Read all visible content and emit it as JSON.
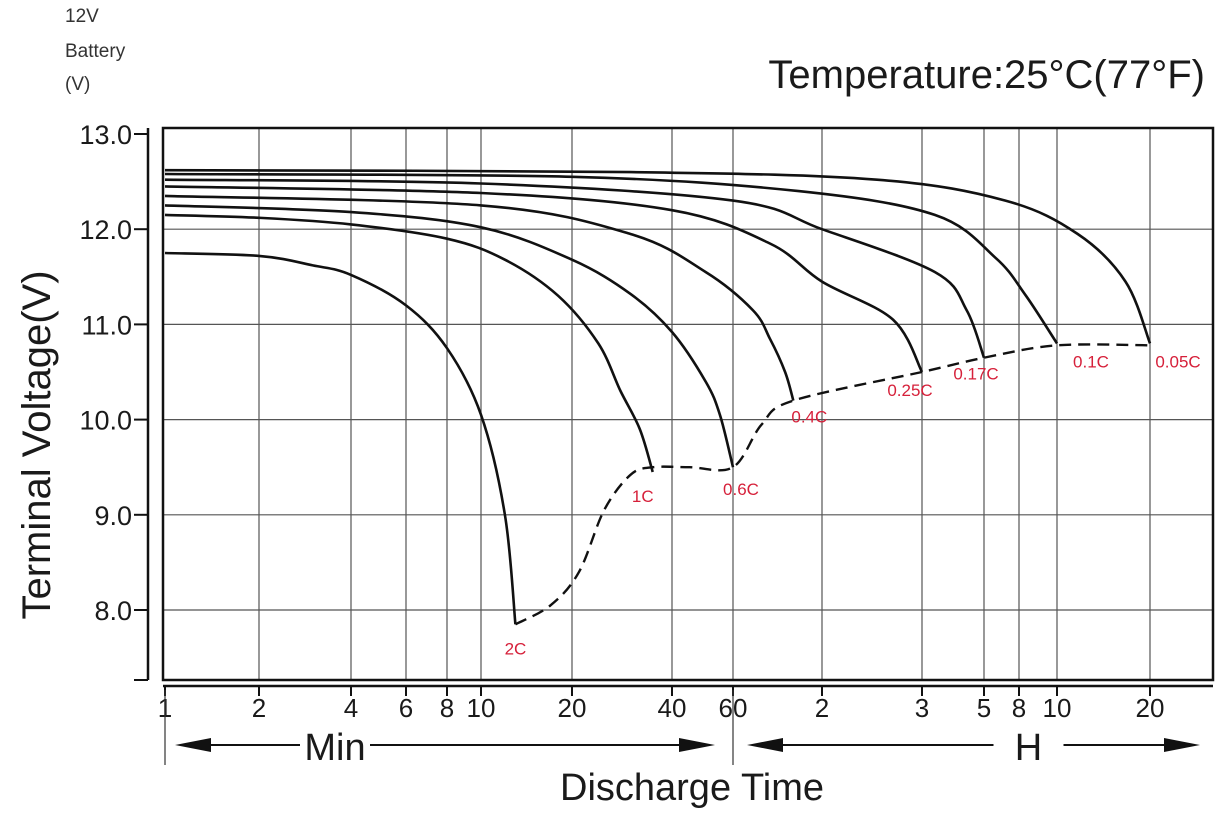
{
  "chart_data": {
    "type": "line",
    "title": "Temperature:25°C(77°F)",
    "unit_label": [
      "12V",
      "Battery",
      "(V)"
    ],
    "ylabel": "Terminal Voltage(V)",
    "xlabel": "Discharge Time",
    "ylim": [
      7.3,
      13.0
    ],
    "yticks": [
      "13.0",
      "12.0",
      "11.0",
      "10.0",
      "9.0",
      "8.0"
    ],
    "x_scale": "log",
    "x_unit": "minutes",
    "xticks": [
      {
        "label": "1",
        "minutes": 1
      },
      {
        "label": "2",
        "minutes": 2
      },
      {
        "label": "4",
        "minutes": 4
      },
      {
        "label": "6",
        "minutes": 6
      },
      {
        "label": "8",
        "minutes": 8
      },
      {
        "label": "10",
        "minutes": 10
      },
      {
        "label": "20",
        "minutes": 20
      },
      {
        "label": "40",
        "minutes": 40
      },
      {
        "label": "60",
        "minutes": 60
      },
      {
        "label": "2",
        "minutes": 120
      },
      {
        "label": "3",
        "minutes": 180
      },
      {
        "label": "5",
        "minutes": 300
      },
      {
        "label": "8",
        "minutes": 480
      },
      {
        "label": "10",
        "minutes": 600
      },
      {
        "label": "20",
        "minutes": 1200
      }
    ],
    "ranges": [
      {
        "label": "Min",
        "from_minutes": 1,
        "to_minutes": 60
      },
      {
        "label": "H",
        "from_minutes": 60,
        "to_minutes": 1200
      }
    ],
    "grid": true,
    "series": [
      {
        "name": "2C",
        "points": [
          [
            1,
            11.75
          ],
          [
            2,
            11.72
          ],
          [
            3,
            11.62
          ],
          [
            4,
            11.52
          ],
          [
            6,
            11.2
          ],
          [
            8,
            10.75
          ],
          [
            10,
            10.05
          ],
          [
            12,
            9.0
          ],
          [
            13,
            7.85
          ]
        ]
      },
      {
        "name": "1C",
        "points": [
          [
            1,
            12.15
          ],
          [
            2,
            12.12
          ],
          [
            4,
            12.05
          ],
          [
            8,
            11.9
          ],
          [
            12,
            11.68
          ],
          [
            18,
            11.3
          ],
          [
            24,
            10.8
          ],
          [
            28,
            10.3
          ],
          [
            32,
            9.9
          ],
          [
            35,
            9.45
          ]
        ]
      },
      {
        "name": "0.6C",
        "points": [
          [
            1,
            12.25
          ],
          [
            4,
            12.18
          ],
          [
            10,
            12.02
          ],
          [
            20,
            11.68
          ],
          [
            30,
            11.32
          ],
          [
            40,
            10.92
          ],
          [
            50,
            10.4
          ],
          [
            55,
            10.05
          ],
          [
            60,
            9.5
          ]
        ]
      },
      {
        "name": "0.4C",
        "points": [
          [
            1,
            12.35
          ],
          [
            10,
            12.25
          ],
          [
            30,
            11.95
          ],
          [
            50,
            11.55
          ],
          [
            70,
            11.15
          ],
          [
            80,
            10.85
          ],
          [
            90,
            10.5
          ],
          [
            96,
            10.2
          ]
        ]
      },
      {
        "name": "0.25C",
        "points": [
          [
            1,
            12.45
          ],
          [
            10,
            12.38
          ],
          [
            40,
            12.2
          ],
          [
            80,
            11.85
          ],
          [
            120,
            11.45
          ],
          [
            160,
            11.05
          ],
          [
            180,
            10.5
          ]
        ]
      },
      {
        "name": "0.17C",
        "points": [
          [
            1,
            12.52
          ],
          [
            10,
            12.48
          ],
          [
            60,
            12.3
          ],
          [
            120,
            12.0
          ],
          [
            200,
            11.55
          ],
          [
            260,
            11.15
          ],
          [
            300,
            10.65
          ]
        ]
      },
      {
        "name": "0.1C",
        "points": [
          [
            1,
            12.58
          ],
          [
            20,
            12.55
          ],
          [
            100,
            12.4
          ],
          [
            200,
            12.15
          ],
          [
            350,
            11.7
          ],
          [
            500,
            11.3
          ],
          [
            600,
            10.8
          ]
        ]
      },
      {
        "name": "0.05C",
        "points": [
          [
            1,
            12.62
          ],
          [
            30,
            12.6
          ],
          [
            150,
            12.52
          ],
          [
            400,
            12.3
          ],
          [
            700,
            11.95
          ],
          [
            1000,
            11.45
          ],
          [
            1200,
            10.8
          ]
        ]
      }
    ],
    "cutoff_curve": {
      "style": "dashed",
      "points": [
        [
          13,
          7.85
        ],
        [
          17,
          8.05
        ],
        [
          21,
          8.4
        ],
        [
          25,
          9.05
        ],
        [
          30,
          9.42
        ],
        [
          35,
          9.5
        ],
        [
          45,
          9.5
        ],
        [
          60,
          9.5
        ],
        [
          75,
          9.95
        ],
        [
          96,
          10.2
        ],
        [
          180,
          10.5
        ],
        [
          300,
          10.65
        ],
        [
          600,
          10.78
        ],
        [
          1200,
          10.78
        ]
      ]
    }
  }
}
